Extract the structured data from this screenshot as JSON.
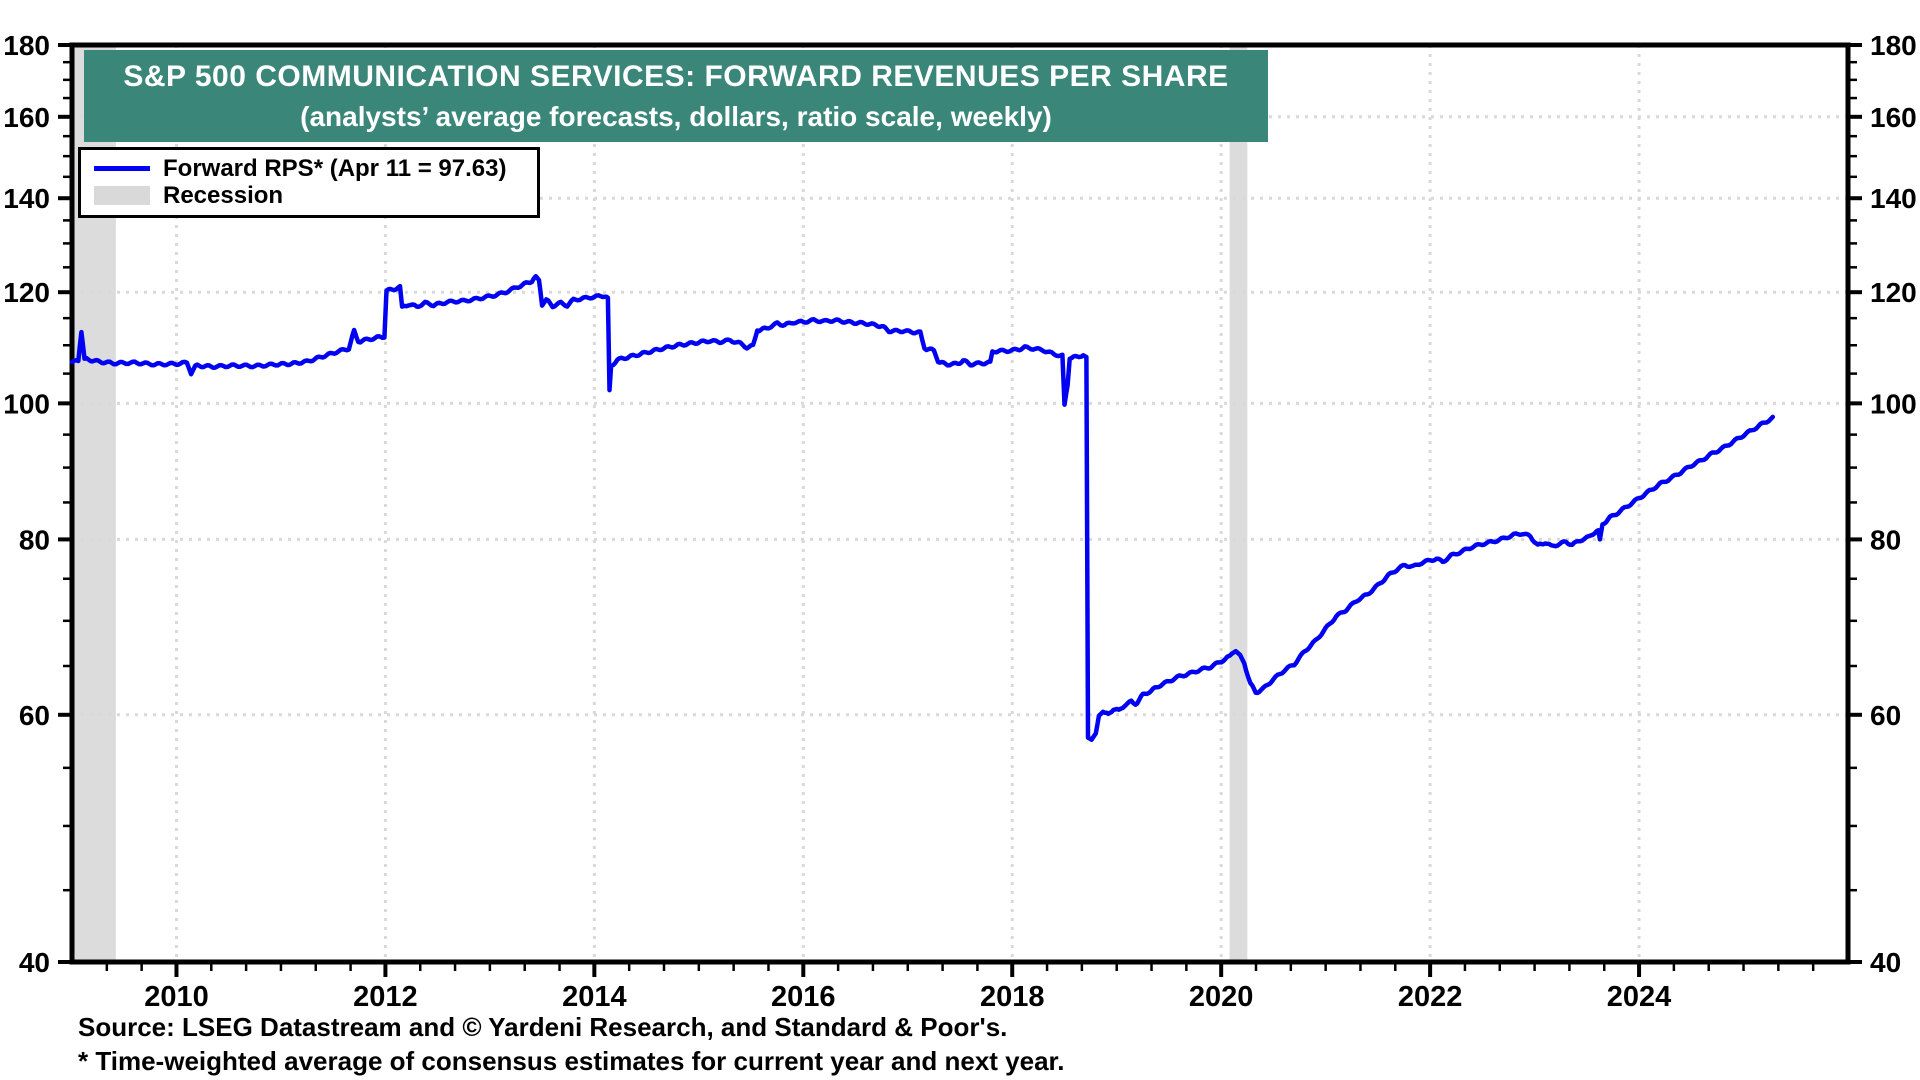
{
  "title": {
    "line1": "S&P 500 COMMUNICATION SERVICES: FORWARD REVENUES PER SHARE",
    "line2": "(analysts’ average forecasts, dollars, ratio scale, weekly)"
  },
  "legend": {
    "series_label": "Forward RPS* (Apr 11 = 97.63)",
    "recession_label": "Recession"
  },
  "footer": {
    "source": "Source: LSEG Datastream and © Yardeni Research, and Standard & Poor's.",
    "footnote": "* Time-weighted average of consensus estimates for current year and next year."
  },
  "colors": {
    "line": "#0202f2",
    "recession_band": "#dcdcdc",
    "title_bg": "#3a8678",
    "grid": "#d9d9d9",
    "frame": "#000000"
  },
  "chart_data": {
    "type": "line",
    "title": "S&P 500 Communication Services: Forward Revenues Per Share",
    "subtitle": "analysts' average forecasts, dollars, ratio scale, weekly",
    "y_scale": "log",
    "x_range": [
      2009,
      2026
    ],
    "y_range": [
      40,
      180
    ],
    "y_ticks": [
      40,
      60,
      80,
      100,
      120,
      140,
      160,
      180
    ],
    "x_ticks": [
      2010,
      2012,
      2014,
      2016,
      2018,
      2020,
      2022,
      2024
    ],
    "grid": "dotted",
    "legend_position": "top-left",
    "recession_bands": [
      [
        2009.0,
        2009.42
      ],
      [
        2020.08,
        2020.25
      ]
    ],
    "last_point": {
      "date": "Apr 11",
      "value": 97.63
    },
    "series": [
      {
        "name": "Forward RPS* (Apr 11 = 97.63)",
        "points": [
          [
            2009.0,
            107.0
          ],
          [
            2009.06,
            107.2
          ],
          [
            2009.09,
            112.4
          ],
          [
            2009.12,
            107.6
          ],
          [
            2009.25,
            107.1
          ],
          [
            2009.4,
            106.8
          ],
          [
            2009.6,
            106.9
          ],
          [
            2009.8,
            106.6
          ],
          [
            2010.0,
            106.7
          ],
          [
            2010.1,
            106.9
          ],
          [
            2010.14,
            104.9
          ],
          [
            2010.18,
            106.4
          ],
          [
            2010.35,
            106.2
          ],
          [
            2010.55,
            106.4
          ],
          [
            2010.75,
            106.3
          ],
          [
            2010.95,
            106.6
          ],
          [
            2011.1,
            106.7
          ],
          [
            2011.25,
            107.1
          ],
          [
            2011.4,
            108.0
          ],
          [
            2011.55,
            108.9
          ],
          [
            2011.65,
            109.4
          ],
          [
            2011.7,
            112.6
          ],
          [
            2011.74,
            110.6
          ],
          [
            2011.82,
            111.0
          ],
          [
            2011.92,
            111.4
          ],
          [
            2011.99,
            111.6
          ],
          [
            2012.01,
            120.3
          ],
          [
            2012.08,
            120.6
          ],
          [
            2012.14,
            121.0
          ],
          [
            2012.16,
            117.2
          ],
          [
            2012.22,
            117.6
          ],
          [
            2012.3,
            117.2
          ],
          [
            2012.38,
            117.9
          ],
          [
            2012.46,
            117.5
          ],
          [
            2012.55,
            117.9
          ],
          [
            2012.65,
            118.2
          ],
          [
            2012.75,
            118.3
          ],
          [
            2012.85,
            118.6
          ],
          [
            2012.95,
            119.0
          ],
          [
            2013.05,
            119.4
          ],
          [
            2013.15,
            120.0
          ],
          [
            2013.25,
            120.9
          ],
          [
            2013.33,
            121.6
          ],
          [
            2013.4,
            122.2
          ],
          [
            2013.44,
            123.2
          ],
          [
            2013.47,
            122.4
          ],
          [
            2013.5,
            117.4
          ],
          [
            2013.54,
            118.6
          ],
          [
            2013.6,
            117.3
          ],
          [
            2013.68,
            117.9
          ],
          [
            2013.74,
            117.4
          ],
          [
            2013.8,
            118.5
          ],
          [
            2013.9,
            118.8
          ],
          [
            2014.0,
            119.1
          ],
          [
            2014.1,
            119.3
          ],
          [
            2014.13,
            118.9
          ],
          [
            2014.145,
            102.2
          ],
          [
            2014.16,
            106.3
          ],
          [
            2014.22,
            107.4
          ],
          [
            2014.35,
            108.0
          ],
          [
            2014.5,
            108.7
          ],
          [
            2014.65,
            109.4
          ],
          [
            2014.8,
            110.0
          ],
          [
            2014.95,
            110.4
          ],
          [
            2015.1,
            110.8
          ],
          [
            2015.2,
            110.6
          ],
          [
            2015.3,
            110.9
          ],
          [
            2015.4,
            110.3
          ],
          [
            2015.46,
            109.6
          ],
          [
            2015.52,
            109.9
          ],
          [
            2015.56,
            112.7
          ],
          [
            2015.65,
            113.1
          ],
          [
            2015.75,
            114.0
          ],
          [
            2015.82,
            113.7
          ],
          [
            2015.9,
            114.2
          ],
          [
            2016.0,
            114.3
          ],
          [
            2016.1,
            114.6
          ],
          [
            2016.2,
            114.4
          ],
          [
            2016.3,
            114.6
          ],
          [
            2016.45,
            114.2
          ],
          [
            2016.6,
            114.0
          ],
          [
            2016.75,
            113.5
          ],
          [
            2016.82,
            112.6
          ],
          [
            2016.95,
            112.6
          ],
          [
            2017.05,
            112.4
          ],
          [
            2017.12,
            112.3
          ],
          [
            2017.16,
            109.4
          ],
          [
            2017.25,
            109.1
          ],
          [
            2017.29,
            107.0
          ],
          [
            2017.38,
            106.6
          ],
          [
            2017.48,
            106.7
          ],
          [
            2017.53,
            107.3
          ],
          [
            2017.6,
            106.6
          ],
          [
            2017.7,
            106.8
          ],
          [
            2017.79,
            106.9
          ],
          [
            2017.81,
            108.9
          ],
          [
            2017.95,
            109.0
          ],
          [
            2018.05,
            109.2
          ],
          [
            2018.12,
            109.6
          ],
          [
            2018.2,
            109.4
          ],
          [
            2018.3,
            109.1
          ],
          [
            2018.4,
            108.4
          ],
          [
            2018.48,
            108.1
          ],
          [
            2018.5,
            99.8
          ],
          [
            2018.53,
            103.0
          ],
          [
            2018.55,
            107.6
          ],
          [
            2018.62,
            108.0
          ],
          [
            2018.68,
            108.2
          ],
          [
            2018.71,
            107.9
          ],
          [
            2018.725,
            57.8
          ],
          [
            2018.76,
            57.6
          ],
          [
            2018.8,
            58.2
          ],
          [
            2018.83,
            59.9
          ],
          [
            2018.87,
            60.3
          ],
          [
            2018.92,
            60.0
          ],
          [
            2018.97,
            60.6
          ],
          [
            2019.02,
            60.4
          ],
          [
            2019.08,
            61.0
          ],
          [
            2019.14,
            61.3
          ],
          [
            2019.18,
            61.0
          ],
          [
            2019.25,
            62.0
          ],
          [
            2019.33,
            62.4
          ],
          [
            2019.4,
            62.9
          ],
          [
            2019.5,
            63.4
          ],
          [
            2019.6,
            63.9
          ],
          [
            2019.7,
            64.2
          ],
          [
            2019.8,
            64.6
          ],
          [
            2019.9,
            64.9
          ],
          [
            2020.0,
            65.5
          ],
          [
            2020.06,
            65.9
          ],
          [
            2020.1,
            66.3
          ],
          [
            2020.14,
            66.6
          ],
          [
            2020.18,
            66.2
          ],
          [
            2020.22,
            65.3
          ],
          [
            2020.28,
            63.2
          ],
          [
            2020.33,
            62.2
          ],
          [
            2020.4,
            62.6
          ],
          [
            2020.5,
            63.6
          ],
          [
            2020.6,
            64.5
          ],
          [
            2020.7,
            65.2
          ],
          [
            2020.8,
            66.6
          ],
          [
            2020.9,
            67.7
          ],
          [
            2021.0,
            69.1
          ],
          [
            2021.1,
            70.5
          ],
          [
            2021.2,
            71.3
          ],
          [
            2021.3,
            72.4
          ],
          [
            2021.4,
            73.1
          ],
          [
            2021.5,
            74.2
          ],
          [
            2021.6,
            75.4
          ],
          [
            2021.7,
            76.3
          ],
          [
            2021.76,
            76.7
          ],
          [
            2021.84,
            76.5
          ],
          [
            2021.92,
            77.0
          ],
          [
            2022.0,
            77.3
          ],
          [
            2022.06,
            77.5
          ],
          [
            2022.12,
            77.1
          ],
          [
            2022.2,
            77.9
          ],
          [
            2022.3,
            78.4
          ],
          [
            2022.4,
            79.0
          ],
          [
            2022.5,
            79.4
          ],
          [
            2022.6,
            79.7
          ],
          [
            2022.7,
            80.1
          ],
          [
            2022.8,
            80.6
          ],
          [
            2022.88,
            80.8
          ],
          [
            2022.96,
            80.4
          ],
          [
            2023.03,
            79.2
          ],
          [
            2023.1,
            79.6
          ],
          [
            2023.16,
            79.1
          ],
          [
            2023.24,
            79.4
          ],
          [
            2023.3,
            79.7
          ],
          [
            2023.36,
            79.3
          ],
          [
            2023.44,
            79.9
          ],
          [
            2023.52,
            80.3
          ],
          [
            2023.58,
            81.0
          ],
          [
            2023.61,
            81.2
          ],
          [
            2023.625,
            80.0
          ],
          [
            2023.65,
            82.0
          ],
          [
            2023.72,
            82.9
          ],
          [
            2023.8,
            83.6
          ],
          [
            2023.9,
            84.6
          ],
          [
            2024.0,
            85.6
          ],
          [
            2024.1,
            86.6
          ],
          [
            2024.2,
            87.6
          ],
          [
            2024.3,
            88.4
          ],
          [
            2024.4,
            89.3
          ],
          [
            2024.5,
            90.3
          ],
          [
            2024.6,
            91.1
          ],
          [
            2024.7,
            92.1
          ],
          [
            2024.8,
            92.9
          ],
          [
            2024.9,
            93.9
          ],
          [
            2025.0,
            94.9
          ],
          [
            2025.1,
            95.9
          ],
          [
            2025.2,
            96.9
          ],
          [
            2025.28,
            97.63
          ]
        ]
      }
    ]
  }
}
